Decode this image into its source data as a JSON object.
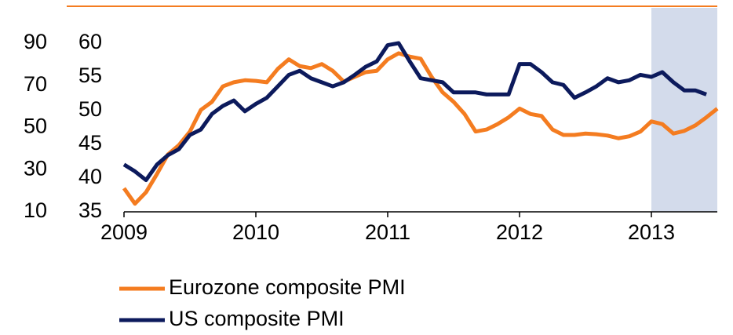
{
  "chart_data": {
    "type": "line",
    "x": [
      2009,
      2009.083,
      2009.167,
      2009.25,
      2009.333,
      2009.417,
      2009.5,
      2009.583,
      2009.667,
      2009.75,
      2009.833,
      2009.917,
      2010,
      2010.083,
      2010.167,
      2010.25,
      2010.333,
      2010.417,
      2010.5,
      2010.583,
      2010.667,
      2010.75,
      2010.833,
      2010.917,
      2011,
      2011.083,
      2011.167,
      2011.25,
      2011.333,
      2011.417,
      2011.5,
      2011.583,
      2011.667,
      2011.75,
      2011.833,
      2011.917,
      2012,
      2012.083,
      2012.167,
      2012.25,
      2012.333,
      2012.417,
      2012.5,
      2012.583,
      2012.667,
      2012.75,
      2012.833,
      2012.917,
      2013,
      2013.083,
      2013.167,
      2013.25,
      2013.333,
      2013.417,
      2013.5
    ],
    "series": [
      {
        "name": "Eurozone composite PMI",
        "color": "#f47c20",
        "values": [
          38.5,
          36.2,
          37.9,
          40.6,
          43.5,
          44.9,
          46.9,
          50.1,
          51.3,
          53.6,
          54.2,
          54.5,
          54.4,
          54.2,
          56.2,
          57.6,
          56.6,
          56.3,
          56.9,
          55.9,
          54.3,
          55.0,
          55.7,
          55.9,
          57.6,
          58.5,
          58.0,
          57.7,
          55.0,
          52.7,
          51.3,
          49.5,
          46.9,
          47.2,
          48.0,
          49.0,
          50.3,
          49.5,
          49.2,
          47.2,
          46.4,
          46.4,
          46.6,
          46.5,
          46.3,
          45.9,
          46.2,
          46.9,
          48.4,
          48.0,
          46.6,
          47.0,
          47.8,
          49.0,
          50.3
        ]
      },
      {
        "name": "US composite PMI",
        "color": "#0c1a5c",
        "values": [
          42.0,
          41.0,
          39.7,
          42.0,
          43.4,
          44.3,
          46.4,
          47.2,
          49.5,
          50.7,
          51.5,
          49.9,
          51.0,
          51.9,
          53.6,
          55.3,
          55.9,
          54.8,
          54.2,
          53.6,
          54.2,
          55.3,
          56.5,
          57.3,
          59.7,
          60.0,
          57.3,
          54.8,
          54.5,
          54.2,
          52.7,
          52.7,
          52.7,
          52.4,
          52.4,
          52.4,
          56.9,
          56.9,
          55.7,
          54.2,
          53.8,
          51.9,
          52.7,
          53.6,
          54.8,
          54.2,
          54.5,
          55.3,
          55.0,
          55.7,
          54.2,
          53.0,
          53.0,
          52.4,
          null
        ]
      }
    ],
    "xlim": [
      2009,
      2013.5
    ],
    "xticks": [
      2009,
      2010,
      2011,
      2012,
      2013
    ],
    "ylim": [
      35,
      60
    ],
    "yticks": [
      35,
      40,
      45,
      50,
      55,
      60
    ],
    "y2lim": [
      10,
      90
    ],
    "y2ticks": [
      10,
      30,
      50,
      70,
      90
    ],
    "shaded_region": [
      2013,
      2013.5
    ],
    "shaded_color": "#d3dbeb",
    "legend": "bottom"
  }
}
